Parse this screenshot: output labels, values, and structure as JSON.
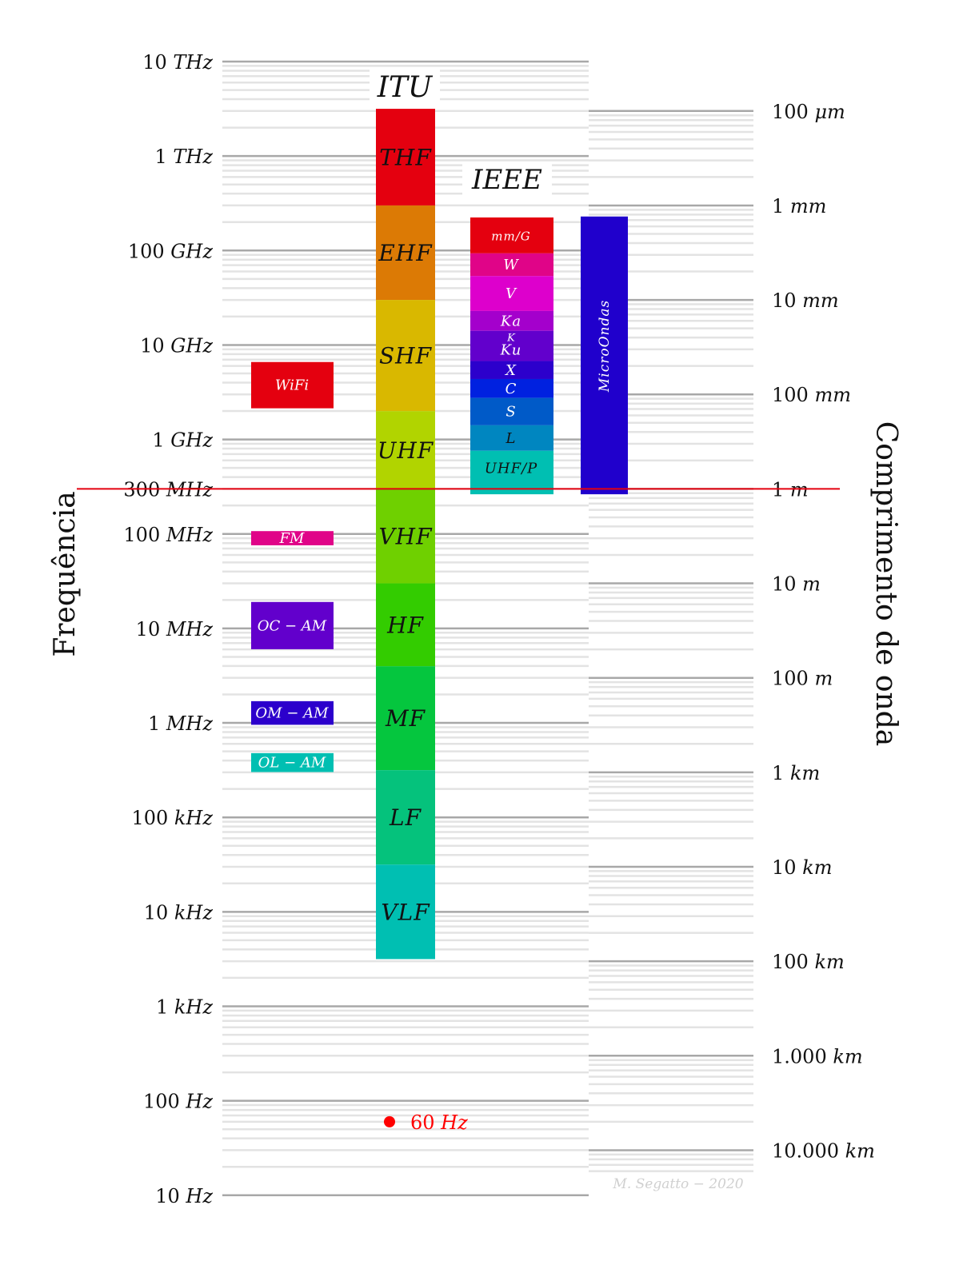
{
  "axis_left_title": "Frequência",
  "axis_right_title": "Comprimento  de onda",
  "itu_title": "ITU",
  "ieee_title": "IEEE",
  "freq_ticks": [
    {
      "num": "10",
      "unit": "THz",
      "exp": 13
    },
    {
      "num": "1",
      "unit": "THz",
      "exp": 12
    },
    {
      "num": "100",
      "unit": "GHz",
      "exp": 11
    },
    {
      "num": "10",
      "unit": "GHz",
      "exp": 10
    },
    {
      "num": "1",
      "unit": "GHz",
      "exp": 9
    },
    {
      "num": "300",
      "unit": "MHz",
      "exp": 8.4771
    },
    {
      "num": "100",
      "unit": "MHz",
      "exp": 8
    },
    {
      "num": "10",
      "unit": "MHz",
      "exp": 7
    },
    {
      "num": "1",
      "unit": "MHz",
      "exp": 6
    },
    {
      "num": "100",
      "unit": "kHz",
      "exp": 5
    },
    {
      "num": "10",
      "unit": "kHz",
      "exp": 4
    },
    {
      "num": "1",
      "unit": "kHz",
      "exp": 3
    },
    {
      "num": "100",
      "unit": "Hz",
      "exp": 2
    },
    {
      "num": "10",
      "unit": "Hz",
      "exp": 1
    }
  ],
  "wave_ticks": [
    {
      "num": "100",
      "unit": "μm",
      "exp": 12.477
    },
    {
      "num": "1",
      "unit": "mm",
      "exp": 11.477
    },
    {
      "num": "10",
      "unit": "mm",
      "exp": 10.477
    },
    {
      "num": "100",
      "unit": "mm",
      "exp": 9.477
    },
    {
      "num": "1",
      "unit": "m",
      "exp": 8.477
    },
    {
      "num": "10",
      "unit": "m",
      "exp": 7.477
    },
    {
      "num": "100",
      "unit": "m",
      "exp": 6.477
    },
    {
      "num": "1",
      "unit": "km",
      "exp": 5.477
    },
    {
      "num": "10",
      "unit": "km",
      "exp": 4.477
    },
    {
      "num": "100",
      "unit": "km",
      "exp": 3.477
    },
    {
      "num": "1.000",
      "unit": "km",
      "exp": 2.477
    },
    {
      "num": "10.000",
      "unit": "km",
      "exp": 1.477
    }
  ],
  "itu_bands": [
    {
      "label": "THF",
      "from": 11.477,
      "to": 12.5,
      "color": "#e4000f"
    },
    {
      "label": "EHF",
      "from": 10.477,
      "to": 11.477,
      "color": "#dc7a05"
    },
    {
      "label": "SHF",
      "from": 9.3,
      "to": 10.477,
      "color": "#d9b800"
    },
    {
      "label": "UHF",
      "from": 8.477,
      "to": 9.3,
      "color": "#b1d400"
    },
    {
      "label": "VHF",
      "from": 7.477,
      "to": 8.477,
      "color": "#6fd000"
    },
    {
      "label": "HF",
      "from": 6.6,
      "to": 7.477,
      "color": "#33cc00"
    },
    {
      "label": "MF",
      "from": 5.5,
      "to": 6.6,
      "color": "#05c63e"
    },
    {
      "label": "LF",
      "from": 4.5,
      "to": 5.5,
      "color": "#05c27c"
    },
    {
      "label": "VLF",
      "from": 3.5,
      "to": 4.5,
      "color": "#00bfb2"
    }
  ],
  "ieee_bands": [
    {
      "label": "mm/G",
      "from": 10.97,
      "to": 11.35,
      "color": "#e4000f"
    },
    {
      "label": "W",
      "from": 10.73,
      "to": 10.97,
      "color": "#e00488"
    },
    {
      "label": "V",
      "from": 10.36,
      "to": 10.73,
      "color": "#dd00cc"
    },
    {
      "label": "Ka",
      "from": 10.15,
      "to": 10.36,
      "color": "#a400cc"
    },
    {
      "label": "Ku",
      "from": 9.83,
      "to": 10.15,
      "color": "#6200cc",
      "sublabel": "K"
    },
    {
      "label": "X",
      "from": 9.64,
      "to": 9.83,
      "color": "#2c00cc"
    },
    {
      "label": "C",
      "from": 9.44,
      "to": 9.64,
      "color": "#0021e0"
    },
    {
      "label": "S",
      "from": 9.15,
      "to": 9.44,
      "color": "#005ac8"
    },
    {
      "label": "L",
      "from": 8.88,
      "to": 9.15,
      "color": "#0086c0"
    },
    {
      "label": "UHF/P",
      "from": 8.51,
      "to": 8.88,
      "color": "#00bfb2"
    },
    {
      "label": "",
      "from": 8.42,
      "to": 8.51,
      "color": "#00bfb2"
    }
  ],
  "microwave": {
    "label": "MicroOndas",
    "from": 8.42,
    "to": 11.36,
    "color": "#2000cc"
  },
  "services": [
    {
      "label": "WiFi",
      "from": 9.33,
      "to": 9.82,
      "color": "#e4000f"
    },
    {
      "label": "FM",
      "from": 7.88,
      "to": 8.03,
      "color": "#e00488"
    },
    {
      "label": "OC − AM",
      "from": 6.78,
      "to": 7.28,
      "color": "#6200cc"
    },
    {
      "label": "OM − AM",
      "from": 5.98,
      "to": 6.23,
      "color": "#2c00cc"
    },
    {
      "label": "OL − AM",
      "from": 5.48,
      "to": 5.68,
      "color": "#00bfb2"
    }
  ],
  "marker": {
    "num": "60",
    "unit": "Hz",
    "exp": 1.778,
    "color": "#ff0000"
  },
  "credit": "M. Segatto − 2020"
}
